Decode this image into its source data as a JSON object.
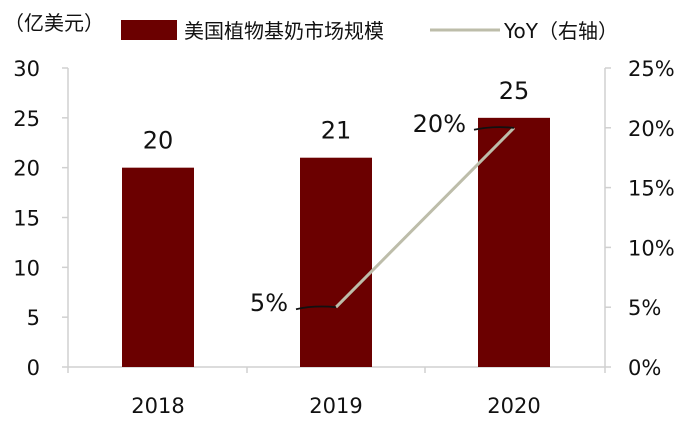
{
  "chart_data": {
    "type": "bar",
    "unit_left": "（亿美元）",
    "categories": [
      "2018",
      "2019",
      "2020"
    ],
    "series": [
      {
        "name": "美国植物基奶市场规模",
        "type": "bar",
        "axis": "left",
        "values": [
          20,
          21,
          25
        ],
        "color": "#6b0000"
      },
      {
        "name": "YoY（右轴）",
        "type": "line",
        "axis": "right",
        "values": [
          null,
          5,
          20
        ],
        "labels": [
          "",
          "5%",
          "20%"
        ],
        "color": "#bdbdaa"
      }
    ],
    "y_left": {
      "min": 0,
      "max": 30,
      "ticks": [
        "0",
        "5",
        "10",
        "15",
        "20",
        "25",
        "30"
      ]
    },
    "y_right": {
      "min": 0,
      "max": 25,
      "ticks": [
        "0%",
        "5%",
        "10%",
        "15%",
        "20%",
        "25%"
      ]
    },
    "bar_labels": [
      "20",
      "21",
      "25"
    ],
    "legend_position": "top"
  }
}
